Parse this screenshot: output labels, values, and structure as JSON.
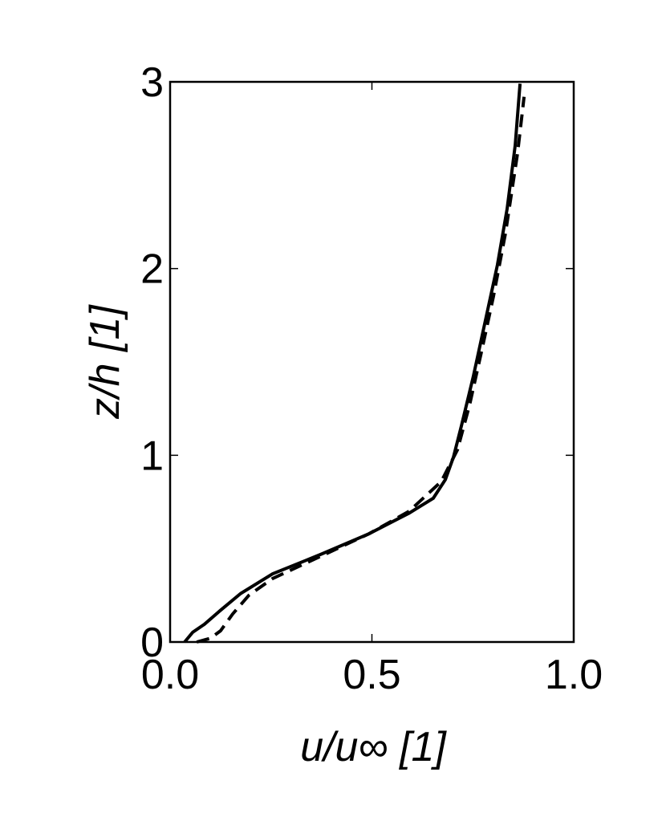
{
  "chart_data": {
    "type": "line",
    "xlabel": "u/u∞  [1]",
    "ylabel": "z/h [1]",
    "xlim": [
      0,
      1
    ],
    "ylim": [
      0,
      3
    ],
    "xticks": [
      {
        "value": 0,
        "label": "0.0"
      },
      {
        "value": 0.5,
        "label": "0.5"
      },
      {
        "value": 1,
        "label": "1.0"
      }
    ],
    "yticks": [
      0,
      1,
      2,
      3
    ],
    "series": [
      {
        "color": "#000000",
        "dash": "solid",
        "x": [
          0.036,
          0.056,
          0.085,
          0.125,
          0.175,
          0.254,
          0.374,
          0.493,
          0.592,
          0.652,
          0.682,
          0.702,
          0.722,
          0.751,
          0.781,
          0.811,
          0.835,
          0.855,
          0.867
        ],
        "values": [
          0,
          0.052,
          0.095,
          0.17,
          0.26,
          0.365,
          0.47,
          0.58,
          0.69,
          0.77,
          0.87,
          0.99,
          1.16,
          1.42,
          1.72,
          2.02,
          2.32,
          2.66,
          2.99
        ]
      },
      {
        "color": "#000000",
        "dash": "dashed",
        "x": [
          0.066,
          0.1,
          0.125,
          0.155,
          0.195,
          0.254,
          0.374,
          0.493,
          0.592,
          0.672,
          0.712,
          0.742,
          0.771,
          0.801,
          0.831,
          0.861,
          0.877
        ],
        "values": [
          0,
          0.02,
          0.06,
          0.15,
          0.25,
          0.34,
          0.46,
          0.58,
          0.7,
          0.86,
          1.03,
          1.27,
          1.55,
          1.85,
          2.19,
          2.62,
          2.92
        ]
      }
    ]
  }
}
